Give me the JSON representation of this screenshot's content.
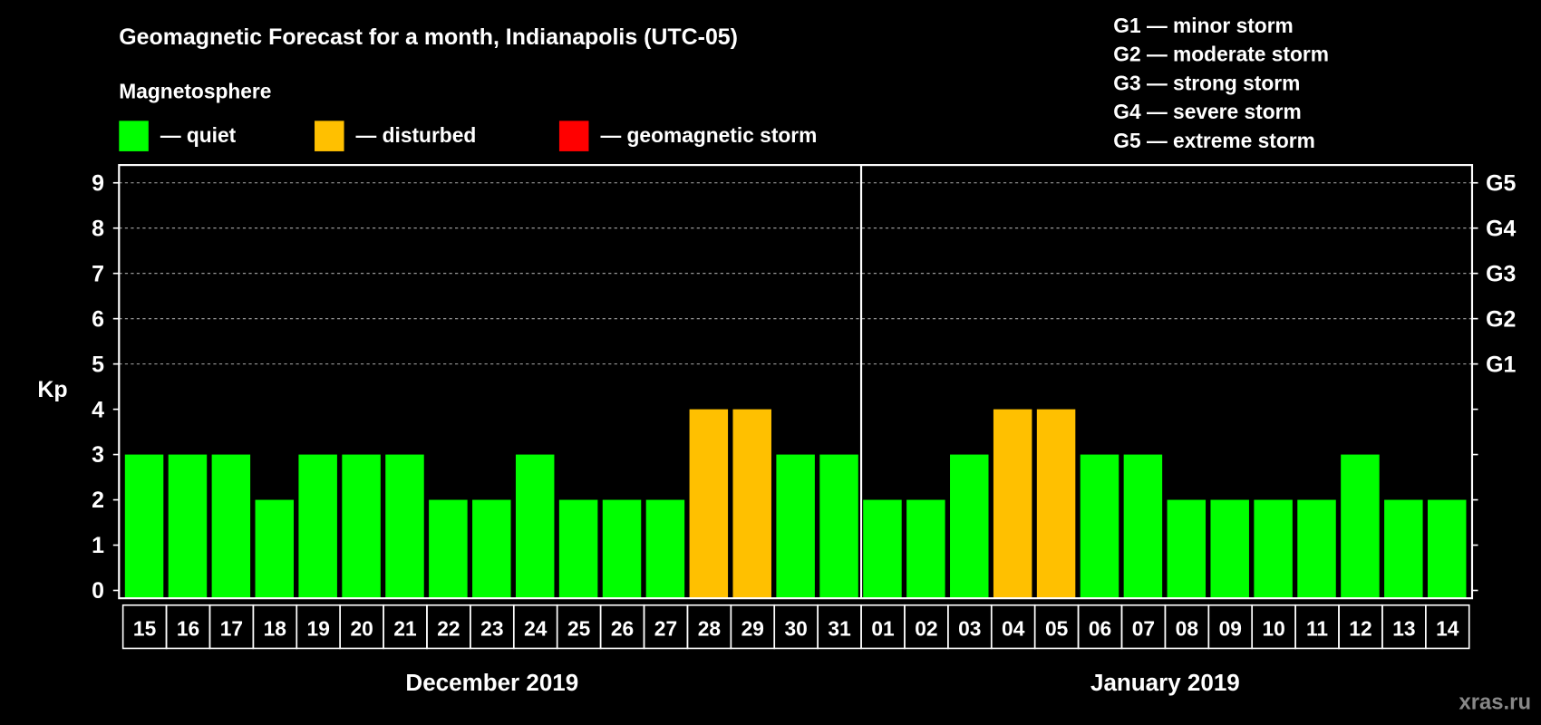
{
  "chart_data": {
    "type": "bar",
    "title": "Geomagnetic Forecast for a month, Indianapolis (UTC-05)",
    "subtitle": "Magnetosphere",
    "ylabel": "Kp",
    "ylim": [
      0,
      9
    ],
    "yticks": [
      "0",
      "1",
      "2",
      "3",
      "4",
      "5",
      "6",
      "7",
      "8",
      "9"
    ],
    "grid": true,
    "right_axis": [
      {
        "kp": 5,
        "label": "G1"
      },
      {
        "kp": 6,
        "label": "G2"
      },
      {
        "kp": 7,
        "label": "G3"
      },
      {
        "kp": 8,
        "label": "G4"
      },
      {
        "kp": 9,
        "label": "G5"
      }
    ],
    "legend": [
      {
        "label": "— quiet",
        "color": "#00ff00"
      },
      {
        "label": "— disturbed",
        "color": "#ffc000"
      },
      {
        "label": "— geomagnetic storm",
        "color": "#ff0000"
      }
    ],
    "scale_legend": [
      "G1 — minor storm",
      "G2 — moderate storm",
      "G3 — strong storm",
      "G4 — severe storm",
      "G5 — extreme storm"
    ],
    "months": [
      {
        "label": "December 2019",
        "days": [
          "15",
          "16",
          "17",
          "18",
          "19",
          "20",
          "21",
          "22",
          "23",
          "24",
          "25",
          "26",
          "27",
          "28",
          "29",
          "30",
          "31"
        ],
        "values": [
          3,
          3,
          3,
          2,
          3,
          3,
          3,
          2,
          2,
          3,
          2,
          2,
          2,
          4,
          4,
          3,
          3
        ]
      },
      {
        "label": "January 2019",
        "days": [
          "01",
          "02",
          "03",
          "04",
          "05",
          "06",
          "07",
          "08",
          "09",
          "10",
          "11",
          "12",
          "13",
          "14"
        ],
        "values": [
          2,
          2,
          3,
          4,
          4,
          3,
          3,
          2,
          2,
          2,
          2,
          3,
          2,
          2
        ]
      }
    ],
    "colors": {
      "quiet": "#00ff00",
      "disturbed": "#ffc000",
      "storm": "#ff0000"
    }
  },
  "watermark": "xras.ru"
}
